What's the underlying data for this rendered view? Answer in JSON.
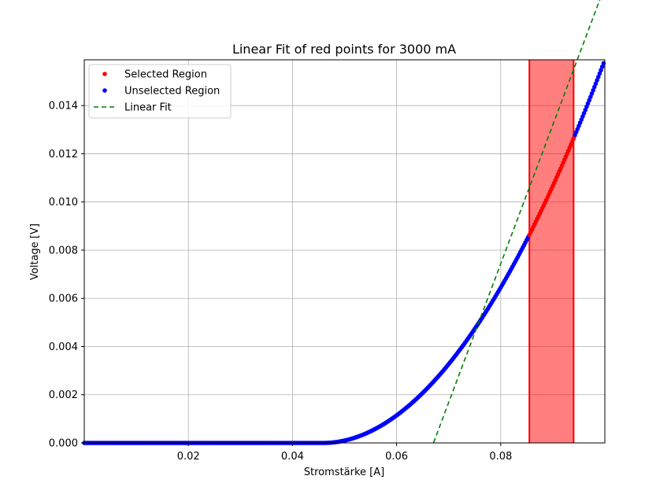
{
  "chart_data": {
    "type": "scatter",
    "title": "Linear Fit of red points for 3000 mA",
    "xlabel": "Stromstärke [A]",
    "ylabel": "Voltage [V]",
    "xlim": [
      0.0,
      0.1
    ],
    "ylim": [
      0.0,
      0.0159
    ],
    "x_ticks": [
      0.02,
      0.04,
      0.06,
      0.08
    ],
    "x_tick_labels": [
      "0.02",
      "0.04",
      "0.06",
      "0.08"
    ],
    "y_ticks": [
      0.0,
      0.002,
      0.004,
      0.006,
      0.008,
      0.01,
      0.012,
      0.014
    ],
    "y_tick_labels": [
      "0.000",
      "0.002",
      "0.004",
      "0.006",
      "0.008",
      "0.010",
      "0.012",
      "0.014"
    ],
    "grid": true,
    "legend_position": "top-left",
    "selected_region": {
      "x_start": 0.0855,
      "x_end": 0.094
    },
    "curve": {
      "x0": 0.046,
      "x_end": 0.1,
      "y_end": 0.0159
    },
    "series": [
      {
        "name": "Selected Region",
        "kind": "points",
        "color": "#ff0000",
        "points": [
          [
            0.0855,
            0.00845
          ],
          [
            0.0865,
            0.00898
          ],
          [
            0.0875,
            0.00952
          ],
          [
            0.0885,
            0.01007
          ],
          [
            0.0895,
            0.01063
          ],
          [
            0.0905,
            0.0112
          ],
          [
            0.0915,
            0.01178
          ],
          [
            0.0925,
            0.01237
          ],
          [
            0.0935,
            0.01297
          ],
          [
            0.094,
            0.01327
          ]
        ]
      },
      {
        "name": "Unselected Region",
        "kind": "points",
        "color": "#0000ff",
        "points": [
          [
            0.0,
            0.0
          ],
          [
            0.01,
            0.0
          ],
          [
            0.02,
            0.0
          ],
          [
            0.03,
            0.0
          ],
          [
            0.04,
            0.0
          ],
          [
            0.046,
            0.0
          ],
          [
            0.05,
            9e-05
          ],
          [
            0.055,
            0.00038
          ],
          [
            0.06,
            0.00111
          ],
          [
            0.065,
            0.00212
          ],
          [
            0.07,
            0.00332
          ],
          [
            0.075,
            0.00468
          ],
          [
            0.08,
            0.00616
          ],
          [
            0.085,
            0.00818
          ],
          [
            0.095,
            0.01245
          ],
          [
            0.1,
            0.0159
          ]
        ]
      },
      {
        "name": "Linear Fit",
        "kind": "dashed-line",
        "color": "#008000",
        "slope": 0.5757,
        "intercept": -0.03862,
        "x_range": [
          0.0671,
          0.1
        ]
      }
    ]
  }
}
